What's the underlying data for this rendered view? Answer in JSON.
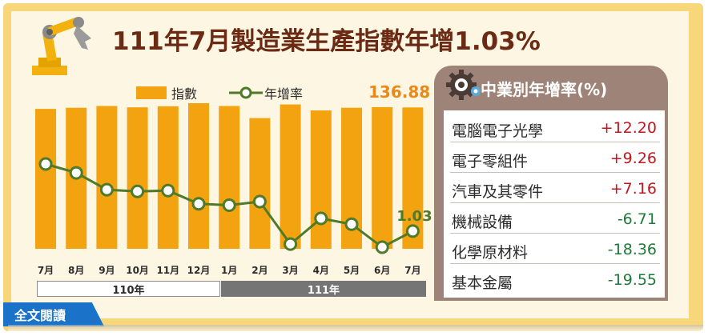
{
  "title": "111年7月製造業生產指數年增1.03%",
  "read_button": "全文閱讀",
  "legend": {
    "bar": "指數",
    "line": "年增率"
  },
  "colors": {
    "bar": "#f3a30f",
    "line": "#4f7a2a",
    "positive": "#c0161d",
    "negative": "#1f7a3a",
    "panel": "#9e8478",
    "title": "#6b2a14"
  },
  "icons": {
    "robot": "robot-arm-icon",
    "gear": "gear-icon"
  },
  "chart_data": {
    "type": "bar",
    "categories": [
      "7月",
      "8月",
      "9月",
      "10月",
      "11月",
      "12月",
      "1月",
      "2月",
      "3月",
      "4月",
      "5月",
      "6月",
      "7月"
    ],
    "year_groups": [
      {
        "label": "110年",
        "from": 0,
        "to": 5
      },
      {
        "label": "111年",
        "from": 6,
        "to": 12
      }
    ],
    "series": [
      {
        "name": "指數",
        "type": "bar",
        "values": [
          135.5,
          136.6,
          138.3,
          137.0,
          138.0,
          141.0,
          138.3,
          126.6,
          139.8,
          134.0,
          136.6,
          137.2,
          136.88
        ]
      },
      {
        "name": "年增率",
        "type": "line",
        "values": [
          16.2,
          14.2,
          10.4,
          10.0,
          10.2,
          7.2,
          6.9,
          7.7,
          -1.9,
          3.9,
          2.6,
          -2.6,
          1.03
        ]
      }
    ],
    "labels": {
      "last_bar": "136.88",
      "last_point": "1.03"
    },
    "ylim_bar": [
      0,
      141
    ],
    "grid": false
  },
  "side_panel": {
    "title": "中業別年增率(%)",
    "rows": [
      {
        "name": "電腦電子光學",
        "value": "+12.20"
      },
      {
        "name": "電子零組件",
        "value": "+9.26"
      },
      {
        "name": "汽車及其零件",
        "value": "+7.16"
      },
      {
        "name": "機械設備",
        "value": "-6.71"
      },
      {
        "name": "化學原材料",
        "value": "-18.36"
      },
      {
        "name": "基本金屬",
        "value": "-19.55"
      }
    ]
  }
}
